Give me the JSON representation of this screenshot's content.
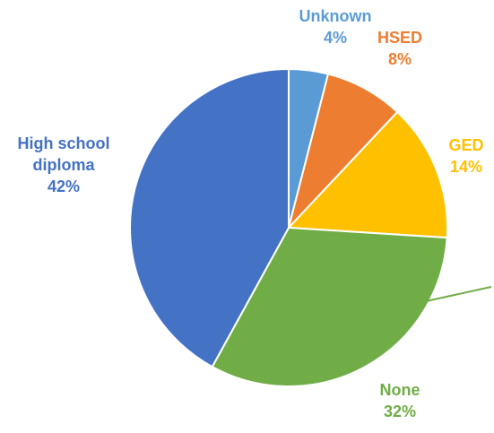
{
  "chart_data": {
    "type": "pie",
    "title": "",
    "start_angle_deg": 0,
    "direction": "clockwise",
    "legend": "none",
    "slice_border_color": "#ffffff",
    "slices": [
      {
        "label": "Unknown",
        "value": 4,
        "value_label": "4%",
        "color": "#5B9BD5"
      },
      {
        "label": "HSED",
        "value": 8,
        "value_label": "8%",
        "color": "#ED7D31"
      },
      {
        "label": "GED",
        "value": 14,
        "value_label": "14%",
        "color": "#FFC000"
      },
      {
        "label": "None",
        "value": 32,
        "value_label": "32%",
        "color": "#70AD47"
      },
      {
        "label": "High school diploma",
        "value_label": "42%",
        "value": 42,
        "color": "#4472C4",
        "label_lines": [
          "High school",
          "diploma"
        ]
      }
    ]
  }
}
